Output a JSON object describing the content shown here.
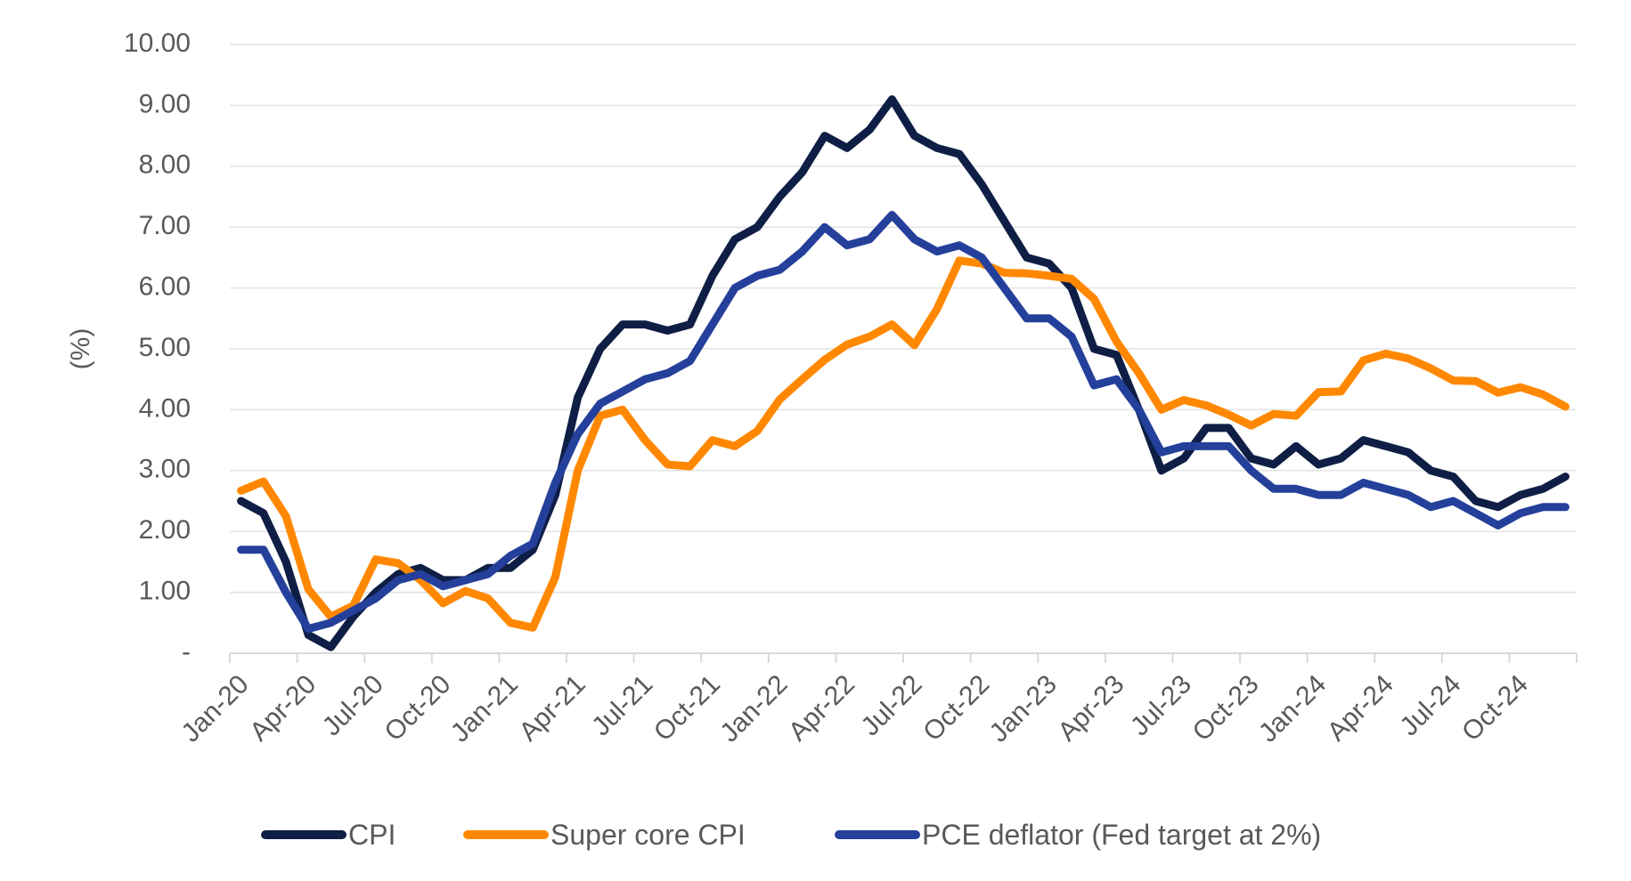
{
  "chart_data": {
    "type": "line",
    "title": "",
    "xlabel": "",
    "ylabel": "(%)",
    "ylim": [
      0,
      10
    ],
    "yticks": [
      0,
      1,
      2,
      3,
      4,
      5,
      6,
      7,
      8,
      9,
      10
    ],
    "ytick_labels": [
      "-",
      "1.00",
      "2.00",
      "3.00",
      "4.00",
      "5.00",
      "6.00",
      "7.00",
      "8.00",
      "9.00",
      "10.00"
    ],
    "grid": "horizontal",
    "legend_position": "bottom",
    "x": [
      "Jan-20",
      "Feb-20",
      "Mar-20",
      "Apr-20",
      "May-20",
      "Jun-20",
      "Jul-20",
      "Aug-20",
      "Sep-20",
      "Oct-20",
      "Nov-20",
      "Dec-20",
      "Jan-21",
      "Feb-21",
      "Mar-21",
      "Apr-21",
      "May-21",
      "Jun-21",
      "Jul-21",
      "Aug-21",
      "Sep-21",
      "Oct-21",
      "Nov-21",
      "Dec-21",
      "Jan-22",
      "Feb-22",
      "Mar-22",
      "Apr-22",
      "May-22",
      "Jun-22",
      "Jul-22",
      "Aug-22",
      "Sep-22",
      "Oct-22",
      "Nov-22",
      "Dec-22",
      "Jan-23",
      "Feb-23",
      "Mar-23",
      "Apr-23",
      "May-23",
      "Jun-23",
      "Jul-23",
      "Aug-23",
      "Sep-23",
      "Oct-23",
      "Nov-23",
      "Dec-23",
      "Jan-24",
      "Feb-24",
      "Mar-24",
      "Apr-24",
      "May-24",
      "Jun-24",
      "Jul-24",
      "Aug-24",
      "Sep-24",
      "Oct-24",
      "Nov-24",
      "Dec-24"
    ],
    "xtick_labels": [
      "Jan-20",
      "Apr-20",
      "Jul-20",
      "Oct-20",
      "Jan-21",
      "Apr-21",
      "Jul-21",
      "Oct-21",
      "Jan-22",
      "Apr-22",
      "Jul-22",
      "Oct-22",
      "Jan-23",
      "Apr-23",
      "Jul-23",
      "Oct-23",
      "Jan-24",
      "Apr-24",
      "Jul-24",
      "Oct-24"
    ],
    "series": [
      {
        "name": "CPI",
        "color": "#0f1e45",
        "values": [
          2.5,
          2.3,
          1.5,
          0.3,
          0.1,
          0.6,
          1.0,
          1.3,
          1.4,
          1.2,
          1.2,
          1.4,
          1.4,
          1.7,
          2.6,
          4.2,
          5.0,
          5.4,
          5.4,
          5.3,
          5.4,
          6.2,
          6.8,
          7.0,
          7.5,
          7.9,
          8.5,
          8.3,
          8.6,
          9.1,
          8.5,
          8.3,
          8.2,
          7.7,
          7.1,
          6.5,
          6.4,
          6.0,
          5.0,
          4.9,
          4.0,
          3.0,
          3.2,
          3.7,
          3.7,
          3.2,
          3.1,
          3.4,
          3.1,
          3.2,
          3.5,
          3.4,
          3.3,
          3.0,
          2.9,
          2.5,
          2.4,
          2.6,
          2.7,
          2.9
        ]
      },
      {
        "name": "Super core CPI",
        "color": "#ff8800",
        "values": [
          2.67,
          2.82,
          2.25,
          1.05,
          0.6,
          0.78,
          1.54,
          1.48,
          1.2,
          0.82,
          1.02,
          0.9,
          0.5,
          0.42,
          1.25,
          3.0,
          3.9,
          4.0,
          3.5,
          3.1,
          3.07,
          3.5,
          3.4,
          3.65,
          4.17,
          4.5,
          4.82,
          5.07,
          5.2,
          5.4,
          5.06,
          5.65,
          6.45,
          6.4,
          6.25,
          6.24,
          6.2,
          6.15,
          5.82,
          5.12,
          4.6,
          4.0,
          4.16,
          4.07,
          3.92,
          3.74,
          3.93,
          3.9,
          4.29,
          4.3,
          4.81,
          4.92,
          4.84,
          4.68,
          4.48,
          4.47,
          4.28,
          4.37,
          4.25,
          4.05
        ]
      },
      {
        "name": "PCE deflator (Fed target at 2%)",
        "color": "#24409a",
        "values": [
          1.7,
          1.7,
          1.0,
          0.4,
          0.5,
          0.7,
          0.9,
          1.2,
          1.3,
          1.1,
          1.2,
          1.3,
          1.6,
          1.8,
          2.8,
          3.6,
          4.1,
          4.3,
          4.5,
          4.6,
          4.8,
          5.4,
          6.0,
          6.2,
          6.3,
          6.6,
          7.0,
          6.7,
          6.8,
          7.2,
          6.8,
          6.6,
          6.7,
          6.5,
          6.0,
          5.5,
          5.5,
          5.2,
          4.4,
          4.5,
          4.0,
          3.3,
          3.4,
          3.4,
          3.4,
          3.0,
          2.7,
          2.7,
          2.6,
          2.6,
          2.8,
          2.7,
          2.6,
          2.4,
          2.5,
          2.3,
          2.1,
          2.3,
          2.4,
          2.4
        ]
      }
    ]
  }
}
